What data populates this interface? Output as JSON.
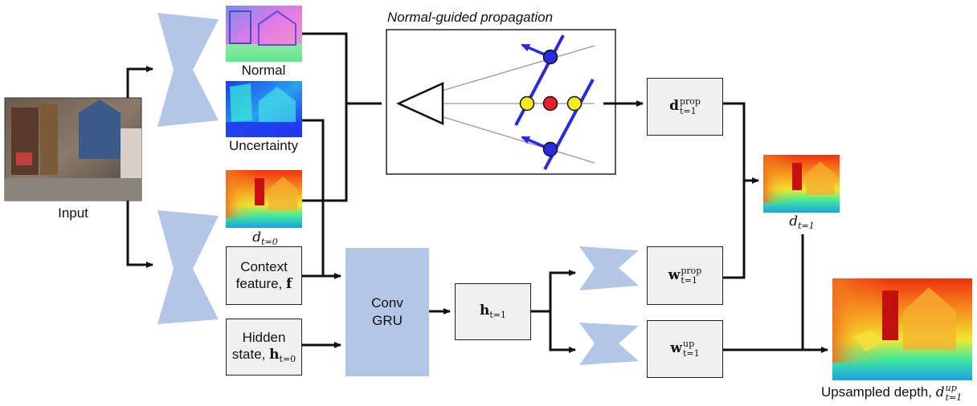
{
  "labels": {
    "input": "Input",
    "normal": "Normal",
    "uncertainty": "Uncertainty",
    "propagation_title": "Normal-guided propagation",
    "context_line1": "Context",
    "context_line2": "feature,",
    "context_symbol": "f",
    "hidden_line1": "Hidden",
    "hidden_line2": "state,",
    "hidden_symbol": "h",
    "hidden_sub": "t=0",
    "conv_line1": "Conv",
    "conv_line2": "GRU",
    "d0_symbol": "d",
    "d0_sub": "t=0",
    "h1_symbol": "h",
    "h1_sub": "t=1",
    "dprop_symbol": "d",
    "dprop_sup": "prop",
    "dprop_sub": "t=1",
    "wprop_symbol": "w",
    "wprop_sup": "prop",
    "wprop_sub": "t=1",
    "wup_symbol": "w",
    "wup_sup": "up",
    "wup_sub": "t=1",
    "d1_symbol": "d",
    "d1_sub": "t=1",
    "upsampled_text": "Upsampled depth,",
    "upsampled_symbol": "d",
    "upsampled_sup": "up",
    "upsampled_sub": "t=1"
  },
  "colors": {
    "network_blue": "#b4c6e7",
    "box_fill": "#f0f0f0",
    "pixel_red": "#e8202a",
    "pixel_yellow": "#f5ec1e",
    "pixel_blue": "#2a2ae0",
    "plane_blue": "#2a2ae0"
  },
  "icons": [
    "encoder-decoder-shape",
    "rgb-photo",
    "normal-map",
    "uncertainty-map",
    "depth-map",
    "camera-frustum"
  ]
}
